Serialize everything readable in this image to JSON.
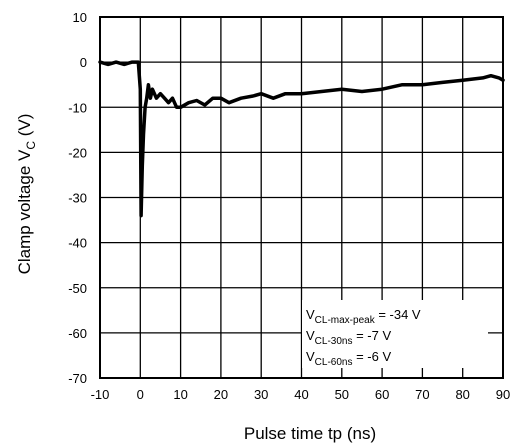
{
  "chart_data": {
    "type": "line",
    "title": "",
    "xlabel": "Pulse time  tp  (ns)",
    "ylabel": "Clamp voltage  V",
    "ylabel_subscript": "C",
    "ylabel_unit": "  (V)",
    "xlim": [
      -10,
      90
    ],
    "ylim": [
      -70,
      10
    ],
    "xticks": [
      -10,
      0,
      10,
      20,
      30,
      40,
      50,
      60,
      70,
      80,
      90
    ],
    "yticks": [
      10,
      0,
      -10,
      -20,
      -30,
      -40,
      -50,
      -60,
      -70
    ],
    "grid": true,
    "series": [
      {
        "x": [
          -10,
          -8,
          -6,
          -4,
          -2,
          -0.5,
          0,
          0.2,
          0.5,
          0.8,
          1.2,
          1.6,
          2,
          2.5,
          3,
          3.5,
          4,
          5,
          6,
          7,
          8,
          9,
          10,
          12,
          14,
          16,
          18,
          20,
          22,
          25,
          28,
          30,
          33,
          36,
          40,
          45,
          50,
          55,
          60,
          65,
          70,
          75,
          80,
          85,
          87,
          89,
          90
        ],
        "y": [
          0,
          -0.5,
          0,
          -0.5,
          0,
          0,
          -6,
          -34,
          -23,
          -16,
          -10,
          -8,
          -5,
          -8,
          -6,
          -7,
          -8,
          -7,
          -8,
          -9,
          -8,
          -10,
          -10,
          -9,
          -8.5,
          -9.5,
          -8,
          -8,
          -9,
          -8,
          -7.5,
          -7,
          -8,
          -7,
          -7,
          -6.5,
          -6,
          -6.5,
          -6,
          -5,
          -5,
          -4.5,
          -4,
          -3.5,
          -3,
          -3.5,
          -4
        ]
      }
    ]
  },
  "annotation": {
    "line1": {
      "main": "V",
      "sub": "CL-max-peak",
      "rest": " = -34 V"
    },
    "line2": {
      "main": "V",
      "sub": "CL-30ns",
      "rest": " = -7 V"
    },
    "line3": {
      "main": "V",
      "sub": "CL-60ns",
      "rest": " = -6 V"
    }
  }
}
